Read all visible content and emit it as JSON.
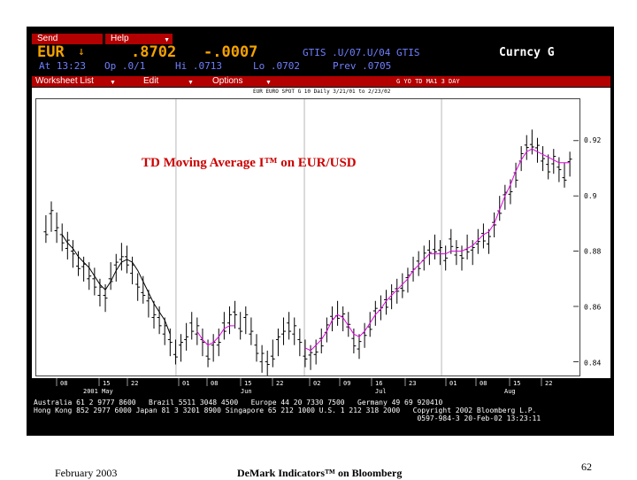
{
  "terminal": {
    "menu": {
      "send": "Send",
      "help": "Help"
    },
    "quote": {
      "ticker": "EUR",
      "arrow": "↓",
      "last": ".8702",
      "change": "-.0007",
      "source": "GTIS .U/07.U/04 GTIS",
      "mode": "Curncy G",
      "line2_at": "At 13:23",
      "line2_op": "Op .0/1",
      "line2_hi": "Hi .0713",
      "line2_lo": "Lo .0702",
      "line2_prev": "Prev .0705"
    },
    "toolbar": {
      "worksheet": "Worksheet List",
      "edit": "Edit",
      "options": "Options",
      "right": "G YO  TD MA1 3 DAY"
    },
    "chart_header": "EUR EURO SPOT G 10 Daily 3/21/01 to 2/23/02",
    "axis": {
      "days": [
        "08",
        "15",
        "22",
        "01",
        "08",
        "15",
        "22",
        "02",
        "09",
        "16",
        "23",
        "01",
        "08",
        "15",
        "22"
      ],
      "months": [
        "2001 May",
        "Jun",
        "Jul",
        "Aug"
      ]
    },
    "footer_lines": [
      "Australia 61 2 9777 8600   Brazil 5511 3048 4500   Europe 44 20 7330 7500   Germany 49 69 920410",
      "Hong Kong 852 2977 6000 Japan 81 3 3201 8900 Singapore 65 212 1000 U.S. 1 212 318 2000   Copyright 2002 Bloomberg L.P.",
      "                                                                                          0597-984-3 20-Feb-02 13:23:11"
    ]
  },
  "slide": {
    "title": "TD Moving Average I™ on EUR/USD",
    "footer_date": "February 2003",
    "footer_title": "DeMark Indicators™ on Bloomberg",
    "page": "62"
  },
  "chart_data": {
    "type": "line",
    "title": "TD Moving Average I™ on EUR/USD",
    "ylim": [
      0.835,
      0.935
    ],
    "yticks": [
      0.84,
      0.86,
      0.88,
      0.9,
      0.92
    ],
    "ytick_labels": [
      "0.84",
      "0.86",
      "0.88",
      "0.9",
      "0.92"
    ],
    "series": [
      {
        "name": "",
        "kind": "ohlc",
        "color": "#000000",
        "high": [
          0.893,
          0.898,
          0.894,
          0.89,
          0.887,
          0.884,
          0.88,
          0.878,
          0.876,
          0.874,
          0.87,
          0.868,
          0.876,
          0.879,
          0.883,
          0.882,
          0.878,
          0.872,
          0.871,
          0.866,
          0.862,
          0.86,
          0.856,
          0.852,
          0.848,
          0.85,
          0.854,
          0.858,
          0.856,
          0.852,
          0.848,
          0.85,
          0.852,
          0.858,
          0.86,
          0.862,
          0.858,
          0.86,
          0.856,
          0.85,
          0.846,
          0.844,
          0.848,
          0.852,
          0.856,
          0.858,
          0.856,
          0.852,
          0.848,
          0.846,
          0.848,
          0.852,
          0.856,
          0.86,
          0.862,
          0.86,
          0.858,
          0.852,
          0.85,
          0.854,
          0.858,
          0.862,
          0.864,
          0.866,
          0.868,
          0.87,
          0.872,
          0.874,
          0.878,
          0.88,
          0.882,
          0.884,
          0.886,
          0.884,
          0.882,
          0.888,
          0.884,
          0.882,
          0.886,
          0.884,
          0.888,
          0.89,
          0.888,
          0.894,
          0.9,
          0.904,
          0.906,
          0.912,
          0.918,
          0.922,
          0.924,
          0.921,
          0.918,
          0.915,
          0.917,
          0.914,
          0.912,
          0.916
        ],
        "low": [
          0.883,
          0.887,
          0.883,
          0.88,
          0.877,
          0.874,
          0.871,
          0.869,
          0.866,
          0.864,
          0.86,
          0.858,
          0.866,
          0.869,
          0.873,
          0.872,
          0.868,
          0.862,
          0.861,
          0.856,
          0.852,
          0.85,
          0.846,
          0.842,
          0.839,
          0.84,
          0.844,
          0.848,
          0.846,
          0.842,
          0.838,
          0.84,
          0.842,
          0.848,
          0.85,
          0.852,
          0.848,
          0.85,
          0.846,
          0.84,
          0.836,
          0.834,
          0.838,
          0.842,
          0.846,
          0.848,
          0.846,
          0.842,
          0.838,
          0.837,
          0.839,
          0.843,
          0.847,
          0.851,
          0.853,
          0.851,
          0.849,
          0.843,
          0.841,
          0.845,
          0.849,
          0.853,
          0.855,
          0.857,
          0.859,
          0.861,
          0.863,
          0.865,
          0.869,
          0.871,
          0.873,
          0.875,
          0.877,
          0.875,
          0.873,
          0.879,
          0.875,
          0.873,
          0.877,
          0.875,
          0.879,
          0.881,
          0.879,
          0.885,
          0.891,
          0.895,
          0.897,
          0.903,
          0.909,
          0.913,
          0.915,
          0.912,
          0.909,
          0.906,
          0.908,
          0.905,
          0.903,
          0.907
        ]
      },
      {
        "name": "",
        "kind": "ma",
        "color": "#000000",
        "values": [
          null,
          null,
          null,
          0.886,
          0.883,
          0.881,
          0.878,
          0.876,
          0.874,
          0.871,
          0.868,
          0.866,
          0.869,
          0.873,
          0.876,
          0.877,
          0.876,
          0.873,
          0.869,
          0.865,
          0.861,
          0.858,
          0.855,
          0.85,
          null,
          null,
          null,
          null,
          null,
          null,
          null,
          null,
          null,
          null,
          null,
          null,
          null,
          null,
          null,
          null,
          null,
          null,
          null,
          null,
          null,
          null,
          null,
          null,
          null,
          null,
          null,
          null,
          null,
          null,
          null,
          null,
          null,
          null,
          null,
          null,
          null,
          null,
          null,
          null,
          null,
          null,
          null,
          null,
          null,
          null,
          null,
          null,
          null,
          null,
          null,
          null,
          null,
          null,
          null,
          null,
          null,
          null,
          null,
          null,
          null,
          null,
          null,
          null,
          null,
          null,
          null,
          null,
          null,
          null,
          null,
          null,
          null,
          null
        ]
      },
      {
        "name": "",
        "kind": "ma",
        "color": "#e000e0",
        "values": [
          null,
          null,
          null,
          null,
          null,
          null,
          null,
          null,
          null,
          null,
          null,
          null,
          null,
          null,
          null,
          null,
          null,
          null,
          null,
          null,
          null,
          null,
          null,
          null,
          null,
          null,
          null,
          null,
          0.851,
          0.848,
          0.846,
          0.847,
          0.849,
          0.852,
          0.853,
          0.853,
          null,
          null,
          null,
          null,
          null,
          null,
          null,
          null,
          null,
          null,
          null,
          null,
          0.845,
          0.844,
          0.846,
          0.848,
          0.851,
          0.855,
          0.857,
          0.856,
          0.853,
          0.85,
          0.849,
          0.851,
          0.854,
          0.857,
          0.859,
          0.862,
          0.864,
          0.866,
          0.868,
          0.87,
          0.873,
          0.875,
          0.877,
          0.879,
          0.879,
          0.879,
          0.879,
          0.88,
          0.88,
          0.88,
          0.881,
          0.882,
          0.884,
          0.886,
          0.887,
          0.89,
          0.895,
          0.9,
          0.904,
          0.909,
          0.913,
          0.916,
          0.917,
          0.916,
          0.915,
          0.914,
          0.913,
          0.912,
          0.912,
          0.912
        ]
      }
    ]
  }
}
